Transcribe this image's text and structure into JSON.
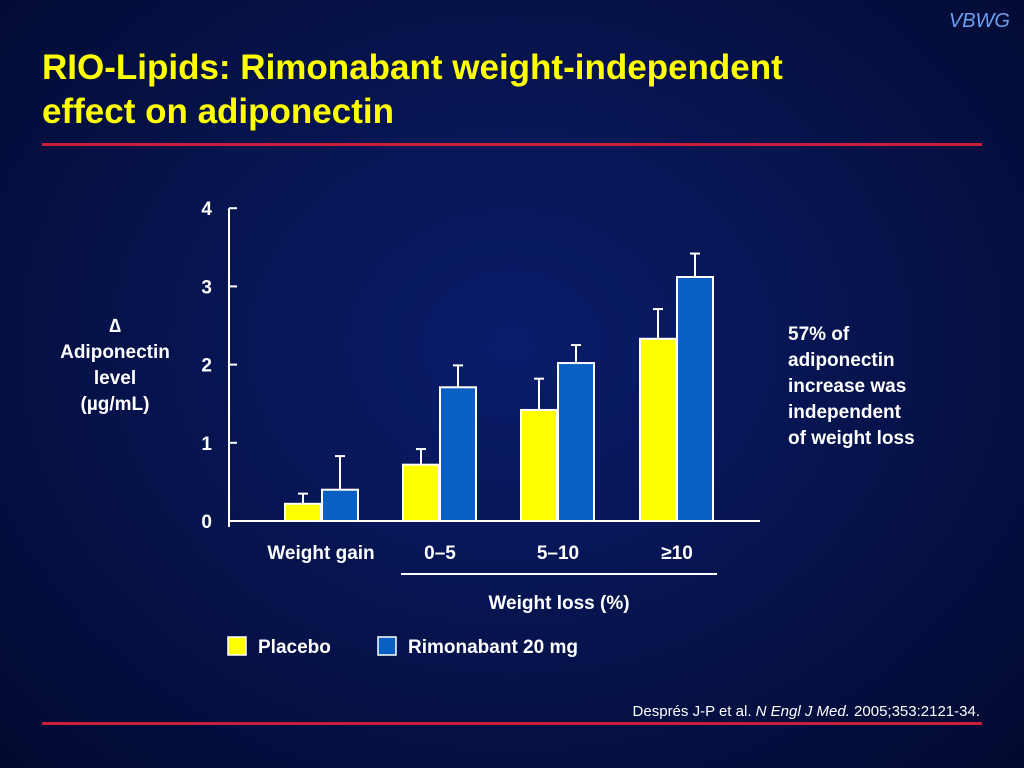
{
  "brand": "VBWG",
  "title_line1": "RIO-Lipids: Rimonabant weight-independent",
  "title_line2": "effect on adiponectin",
  "ylabel_lines": [
    "∆",
    "Adiponectin",
    "level",
    "(µg/mL)"
  ],
  "annotation_lines": [
    "57% of",
    "adiponectin",
    "increase was",
    "independent",
    "of weight loss"
  ],
  "citation": {
    "authors": "Després J-P et al. ",
    "journal": "N Engl J Med.",
    "details": " 2005;353:2121-34."
  },
  "chart_data": {
    "type": "bar",
    "categories": [
      "Weight gain",
      "0–5",
      "5–10",
      "≥10"
    ],
    "category_group_label": "Weight loss (%)",
    "ylim": [
      0,
      4
    ],
    "yticks": [
      0,
      1,
      2,
      3,
      4
    ],
    "ylabel": "∆ Adiponectin level (µg/mL)",
    "series": [
      {
        "name": "Placebo",
        "color": "#ffff00",
        "values": [
          0.22,
          0.72,
          1.42,
          2.33
        ],
        "errors": [
          0.13,
          0.2,
          0.4,
          0.38
        ]
      },
      {
        "name": "Rimonabant 20 mg",
        "color": "#0a5fc2",
        "values": [
          0.4,
          1.71,
          2.02,
          3.12
        ],
        "errors": [
          0.43,
          0.28,
          0.23,
          0.3
        ]
      }
    ],
    "grid": false,
    "legend": "bottom"
  }
}
